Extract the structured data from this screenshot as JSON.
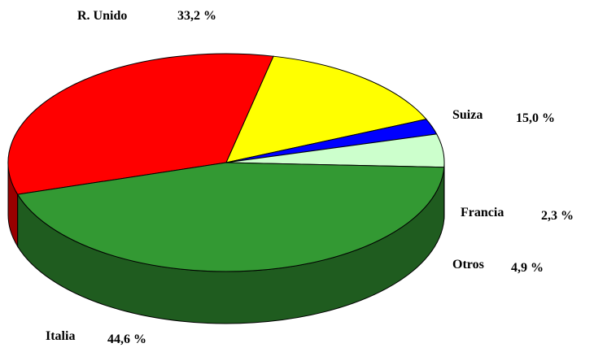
{
  "chart_data": {
    "type": "pie",
    "title": "",
    "slices": [
      {
        "label": "R. Unido",
        "value": 33.2,
        "value_label": "33,2 %",
        "color": "#FF0000"
      },
      {
        "label": "Suiza",
        "value": 15.0,
        "value_label": "15,0 %",
        "color": "#FFFF00"
      },
      {
        "label": "Francia",
        "value": 2.3,
        "value_label": "2,3 %",
        "color": "#0000FF"
      },
      {
        "label": "Otros",
        "value": 4.9,
        "value_label": "4,9 %",
        "color": "#CCFFCC"
      },
      {
        "label": "Italia",
        "value": 44.6,
        "value_label": "44,6 %",
        "color": "#339933"
      }
    ],
    "style": "3d-pie",
    "legend": "none"
  }
}
